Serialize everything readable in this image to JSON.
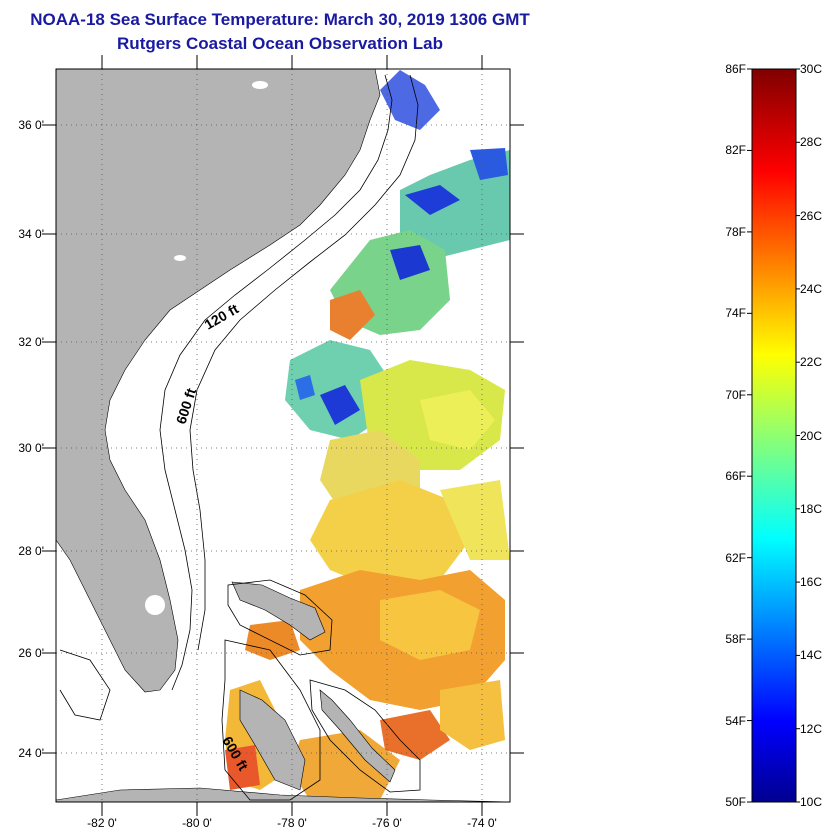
{
  "title": {
    "line1": "NOAA-18 Sea Surface Temperature:  March 30, 2019 1306 GMT",
    "line2": "Rutgers Coastal Ocean Observation Lab"
  },
  "map": {
    "lat_ticks": [
      "36 0'",
      "34 0'",
      "32 0'",
      "30 0'",
      "28 0'",
      "26 0'",
      "24 0'"
    ],
    "lon_ticks": [
      "-82 0'",
      "-80 0'",
      "-78 0'",
      "-76 0'",
      "-74 0'"
    ],
    "isobath_labels": [
      "120 ft",
      "600 ft",
      "600 ft"
    ],
    "land_color": "#b4b4b4"
  },
  "colorbar": {
    "fahrenheit_labels": [
      "86F",
      "82F",
      "78F",
      "74F",
      "70F",
      "66F",
      "62F",
      "58F",
      "54F",
      "50F"
    ],
    "celsius_labels": [
      "30C",
      "28C",
      "26C",
      "24C",
      "22C",
      "20C",
      "18C",
      "16C",
      "14C",
      "12C",
      "10C"
    ],
    "colormap": "jet",
    "range_celsius": [
      10,
      30
    ]
  }
}
